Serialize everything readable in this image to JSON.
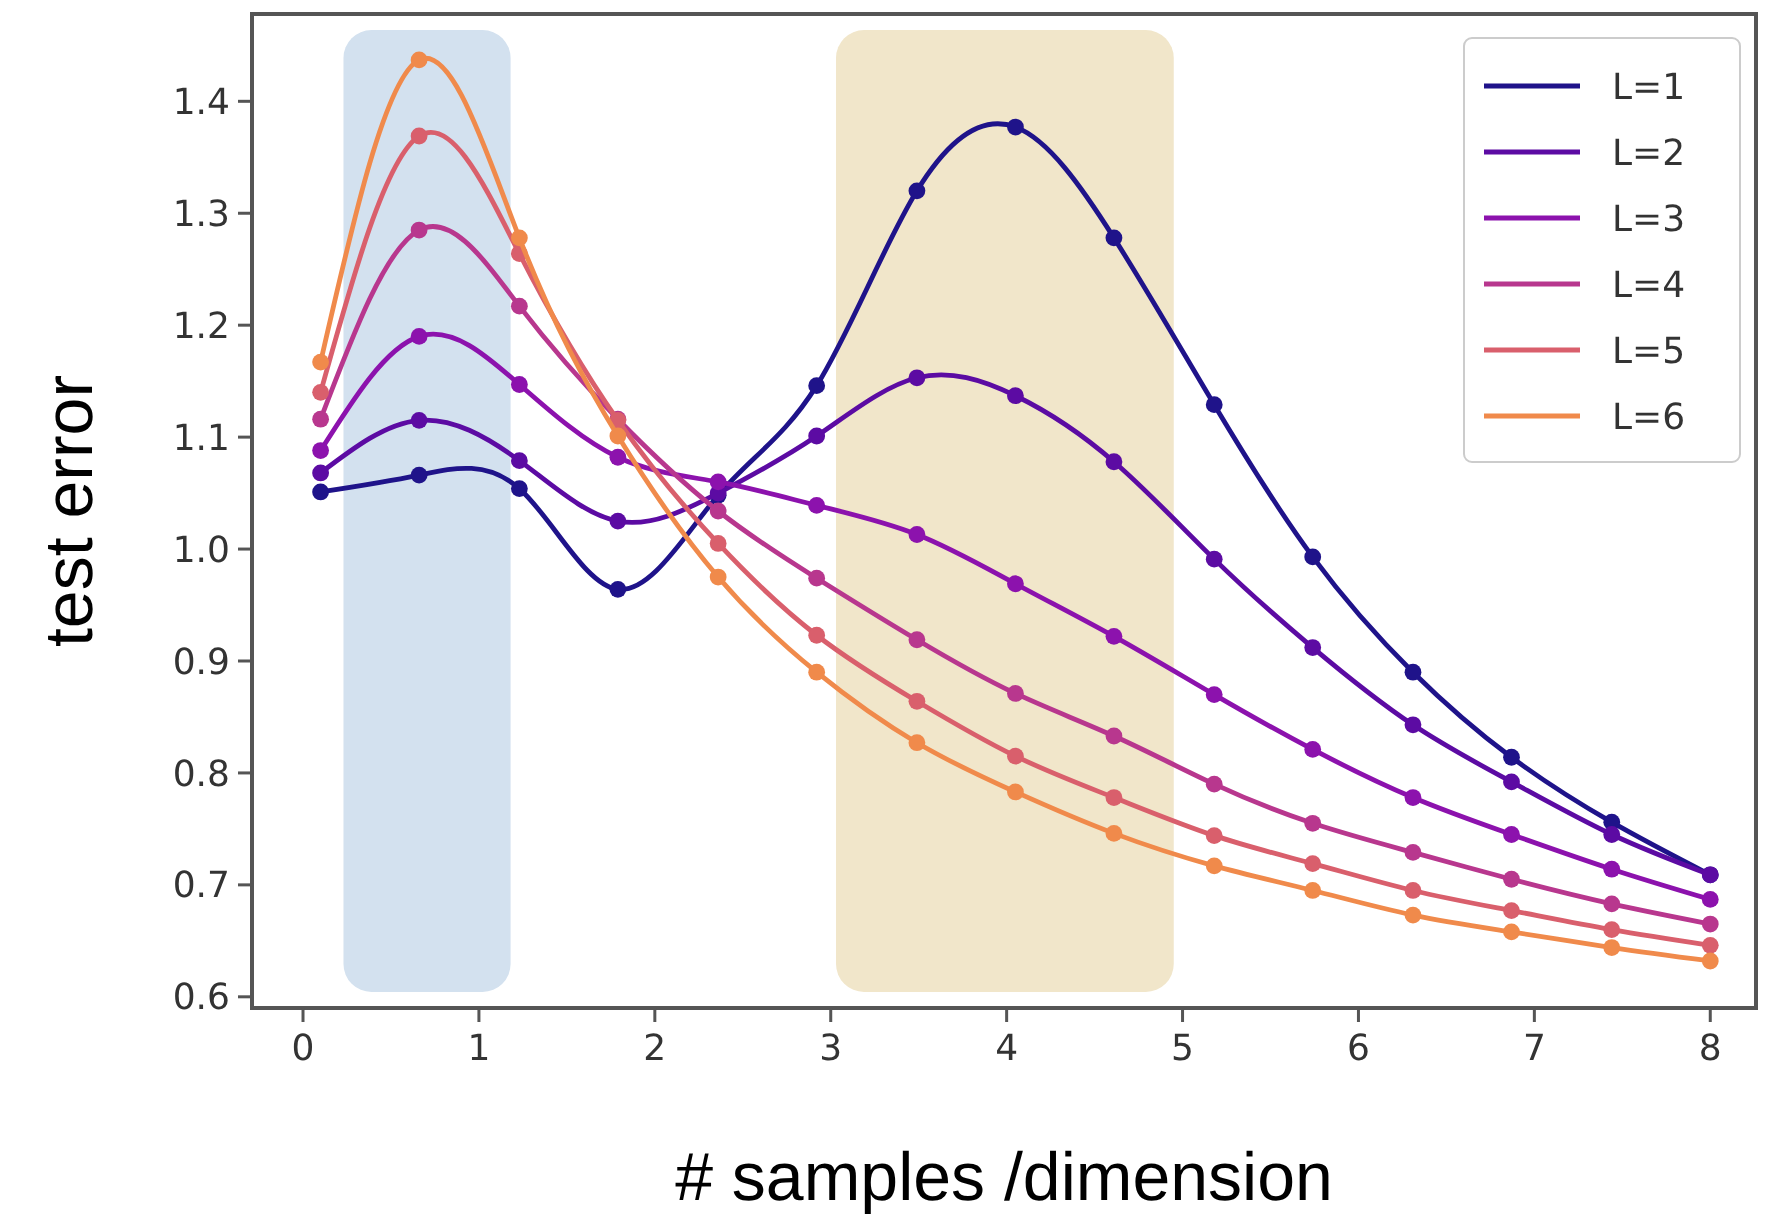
{
  "chart_data": {
    "type": "line",
    "xlabel": "# samples /dimension",
    "ylabel": "test error",
    "x": [
      0.1,
      0.66,
      1.23,
      1.79,
      2.36,
      2.92,
      3.49,
      4.05,
      4.61,
      5.18,
      5.74,
      6.31,
      6.87,
      7.44,
      8.0
    ],
    "series": [
      {
        "name": "L=1",
        "color": "#1f138a",
        "values": [
          1.051,
          1.066,
          1.054,
          0.964,
          1.048,
          1.146,
          1.32,
          1.377,
          1.278,
          1.129,
          0.993,
          0.89,
          0.814,
          0.756,
          0.709
        ]
      },
      {
        "name": "L=2",
        "color": "#5c0ba3",
        "values": [
          1.068,
          1.115,
          1.079,
          1.025,
          1.05,
          1.101,
          1.153,
          1.137,
          1.078,
          0.991,
          0.912,
          0.843,
          0.792,
          0.745,
          0.709
        ]
      },
      {
        "name": "L=3",
        "color": "#8c12ad",
        "values": [
          1.088,
          1.19,
          1.147,
          1.082,
          1.06,
          1.039,
          1.013,
          0.969,
          0.922,
          0.87,
          0.821,
          0.778,
          0.745,
          0.714,
          0.687
        ]
      },
      {
        "name": "L=4",
        "color": "#b8378e",
        "values": [
          1.116,
          1.285,
          1.217,
          1.116,
          1.034,
          0.974,
          0.919,
          0.871,
          0.833,
          0.79,
          0.755,
          0.729,
          0.705,
          0.683,
          0.665
        ]
      },
      {
        "name": "L=5",
        "color": "#d95f6c",
        "values": [
          1.14,
          1.369,
          1.264,
          1.115,
          1.005,
          0.923,
          0.864,
          0.815,
          0.778,
          0.744,
          0.719,
          0.695,
          0.677,
          0.66,
          0.646
        ]
      },
      {
        "name": "L=6",
        "color": "#f08a4b",
        "values": [
          1.167,
          1.437,
          1.278,
          1.101,
          0.975,
          0.89,
          0.827,
          0.783,
          0.746,
          0.717,
          0.695,
          0.673,
          0.658,
          0.644,
          0.632
        ]
      }
    ],
    "xlim": [
      -0.29,
      8.26
    ],
    "ylim": [
      0.59,
      1.478
    ],
    "xticks": [
      0,
      1,
      2,
      3,
      4,
      5,
      6,
      7,
      8
    ],
    "yticks": [
      {
        "value": 0.6,
        "label": "0.6"
      },
      {
        "value": 0.7,
        "label": "0.7"
      },
      {
        "value": 0.8,
        "label": "0.8"
      },
      {
        "value": 0.9,
        "label": "0.9"
      },
      {
        "value": 1.0,
        "label": "1.0"
      },
      {
        "value": 1.1,
        "label": "1.1"
      },
      {
        "value": 1.2,
        "label": "1.2"
      },
      {
        "value": 1.3,
        "label": "1.3"
      },
      {
        "value": 1.4,
        "label": "1.4"
      }
    ],
    "bands": [
      {
        "axis": "x",
        "from": 0.23,
        "to": 1.18,
        "color": "#d3e1ef"
      },
      {
        "axis": "x",
        "from": 3.03,
        "to": 4.95,
        "color": "#f1e6ca"
      }
    ],
    "marker": "circle",
    "line_style": "solid",
    "legend": "top right",
    "grid": false
  }
}
